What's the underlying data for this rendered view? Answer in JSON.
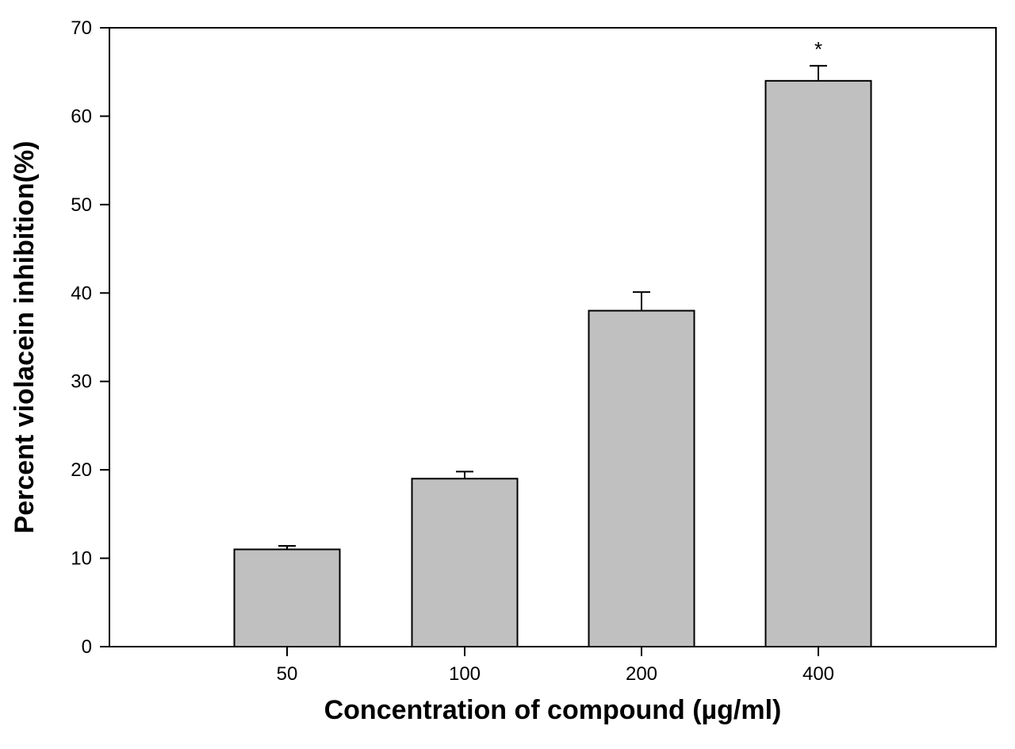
{
  "chart_data": {
    "type": "bar",
    "title": "",
    "xlabel": "Concentration of compound (µg/ml)",
    "ylabel": "Percent violacein inhibition(%)",
    "categories": [
      "50",
      "100",
      "200",
      "400"
    ],
    "values": [
      11,
      19,
      38,
      64
    ],
    "errors": [
      0.4,
      0.8,
      2.1,
      1.7
    ],
    "annotations": [
      "",
      "",
      "",
      "*"
    ],
    "ylim": [
      0,
      70
    ],
    "yticks": [
      0,
      10,
      20,
      30,
      40,
      50,
      60,
      70
    ],
    "grid": false,
    "legend": "none",
    "bar_color": "#c0c0c0",
    "edge_color": "#000000"
  }
}
